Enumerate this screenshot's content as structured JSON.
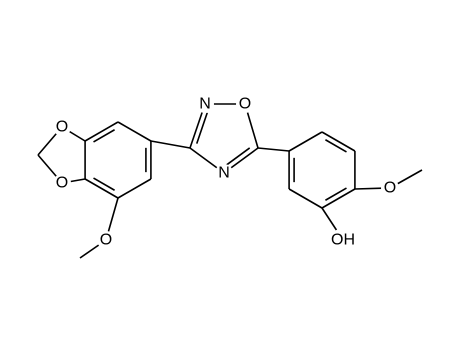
{
  "molecule": {
    "atoms": [
      {
        "label": "O"
      },
      {
        "label": "O"
      },
      {
        "label": "O"
      },
      {
        "label": "N"
      },
      {
        "label": "O"
      },
      {
        "label": "N"
      },
      {
        "label": "O"
      },
      {
        "label": "OH"
      }
    ]
  }
}
